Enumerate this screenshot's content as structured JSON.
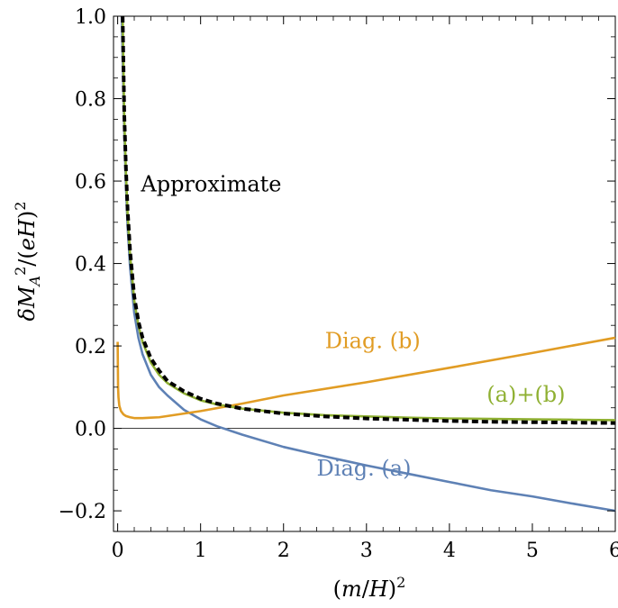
{
  "chart_data": {
    "type": "line",
    "xlabel_parts": [
      "(",
      "m",
      "/",
      "H",
      ")",
      "2"
    ],
    "ylabel_parts": [
      "δ",
      "M",
      "A",
      "2",
      "/(",
      "e",
      "H",
      ")",
      "2"
    ],
    "xlim": [
      -0.05,
      6.0
    ],
    "ylim": [
      -0.25,
      1.0
    ],
    "x_ticks": [
      0,
      1,
      2,
      3,
      4,
      5,
      6
    ],
    "x_tick_labels": [
      "0",
      "1",
      "2",
      "3",
      "4",
      "5",
      "6"
    ],
    "y_ticks": [
      -0.2,
      0.0,
      0.2,
      0.4,
      0.6,
      0.8,
      1.0
    ],
    "y_tick_labels": [
      "−0.2",
      "0.0",
      "0.2",
      "0.4",
      "0.6",
      "0.8",
      "1.0"
    ],
    "grid": false,
    "zero_line": true,
    "series": [
      {
        "name": "Diag. (a)",
        "color": "#5e81b5",
        "dashed": false,
        "x": [
          0.05,
          0.08,
          0.1,
          0.12,
          0.15,
          0.2,
          0.25,
          0.3,
          0.4,
          0.5,
          0.6,
          0.8,
          1.0,
          1.2,
          1.5,
          2.0,
          2.5,
          3.0,
          3.5,
          4.0,
          4.5,
          5.0,
          5.5,
          6.0
        ],
        "y": [
          1.0,
          0.72,
          0.59,
          0.49,
          0.39,
          0.28,
          0.22,
          0.18,
          0.13,
          0.1,
          0.08,
          0.045,
          0.022,
          0.005,
          -0.015,
          -0.045,
          -0.068,
          -0.09,
          -0.11,
          -0.13,
          -0.15,
          -0.165,
          -0.183,
          -0.2
        ]
      },
      {
        "name": "Diag. (b)",
        "color": "#e19c24",
        "dashed": false,
        "x": [
          0.0,
          0.005,
          0.01,
          0.02,
          0.04,
          0.07,
          0.1,
          0.15,
          0.2,
          0.3,
          0.4,
          0.5,
          0.7,
          1.0,
          1.5,
          2.0,
          3.0,
          4.0,
          5.0,
          6.0
        ],
        "y": [
          0.21,
          0.1,
          0.075,
          0.055,
          0.042,
          0.034,
          0.03,
          0.027,
          0.025,
          0.025,
          0.026,
          0.027,
          0.033,
          0.042,
          0.06,
          0.08,
          0.112,
          0.147,
          0.183,
          0.22
        ]
      },
      {
        "name": "(a)+(b)",
        "color": "#8fb032",
        "dashed": false,
        "x": [
          0.06,
          0.08,
          0.1,
          0.12,
          0.15,
          0.2,
          0.25,
          0.3,
          0.4,
          0.5,
          0.6,
          0.8,
          1.0,
          1.2,
          1.5,
          2.0,
          2.5,
          3.0,
          3.5,
          4.0,
          4.5,
          5.0,
          5.5,
          6.0
        ],
        "y": [
          1.0,
          0.75,
          0.62,
          0.52,
          0.42,
          0.31,
          0.25,
          0.21,
          0.16,
          0.13,
          0.11,
          0.085,
          0.068,
          0.058,
          0.048,
          0.038,
          0.032,
          0.029,
          0.026,
          0.024,
          0.023,
          0.022,
          0.021,
          0.02
        ]
      },
      {
        "name": "Approximate",
        "color": "#000000",
        "dashed": true,
        "x": [
          0.06,
          0.08,
          0.1,
          0.12,
          0.15,
          0.2,
          0.25,
          0.3,
          0.4,
          0.5,
          0.6,
          0.8,
          1.0,
          1.2,
          1.5,
          2.0,
          2.5,
          3.0,
          3.5,
          4.0,
          4.5,
          5.0,
          5.5,
          6.0
        ],
        "y": [
          1.0,
          0.76,
          0.63,
          0.53,
          0.43,
          0.32,
          0.26,
          0.22,
          0.17,
          0.14,
          0.115,
          0.09,
          0.072,
          0.06,
          0.048,
          0.036,
          0.029,
          0.024,
          0.021,
          0.018,
          0.016,
          0.015,
          0.014,
          0.013
        ]
      }
    ],
    "annotations": [
      {
        "text": "Approximate",
        "color": "#000000",
        "x": 0.28,
        "y": 0.575
      },
      {
        "text": "Diag. (b)",
        "color": "#e19c24",
        "x": 2.5,
        "y": 0.195
      },
      {
        "text": "(a)+(b)",
        "color": "#8fb032",
        "x": 4.45,
        "y": 0.065
      },
      {
        "text": "Diag. (a)",
        "color": "#5e81b5",
        "x": 2.4,
        "y": -0.115
      }
    ]
  }
}
